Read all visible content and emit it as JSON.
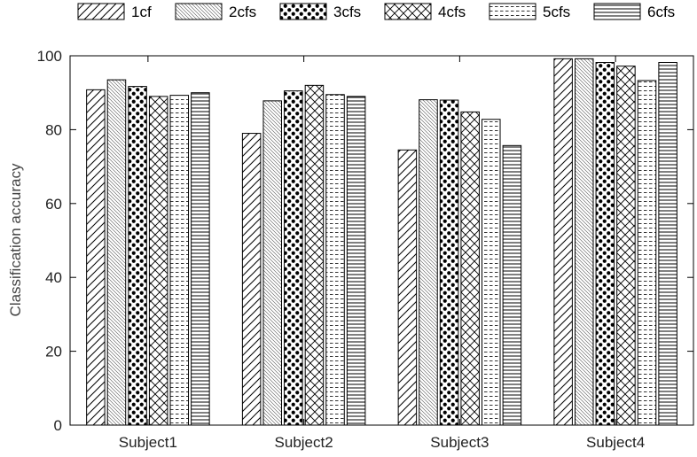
{
  "chart_data": {
    "type": "bar",
    "title": "",
    "xlabel": "",
    "ylabel": "Classification accuracy",
    "ylim": [
      0,
      100
    ],
    "yticks": [
      0,
      20,
      40,
      60,
      80,
      100
    ],
    "grid": false,
    "legend_position": "top",
    "categories": [
      "Subject1",
      "Subject2",
      "Subject3",
      "Subject4"
    ],
    "series": [
      {
        "name": "1cf",
        "pattern": "diagonal-lines",
        "values": [
          90.8,
          79.0,
          74.5,
          99.2
        ]
      },
      {
        "name": "2cfs",
        "pattern": "fine-diagonal",
        "values": [
          93.5,
          87.8,
          88.1,
          99.2
        ]
      },
      {
        "name": "3cfs",
        "pattern": "dots",
        "values": [
          91.7,
          90.5,
          88.0,
          98.2
        ]
      },
      {
        "name": "4cfs",
        "pattern": "crosshatch",
        "values": [
          89.0,
          92.0,
          84.8,
          97.2
        ]
      },
      {
        "name": "5cfs",
        "pattern": "dashed-lines",
        "values": [
          89.3,
          89.5,
          82.8,
          93.3
        ]
      },
      {
        "name": "6cfs",
        "pattern": "horizontal-lines",
        "values": [
          90.0,
          89.0,
          75.7,
          98.2
        ]
      }
    ]
  }
}
